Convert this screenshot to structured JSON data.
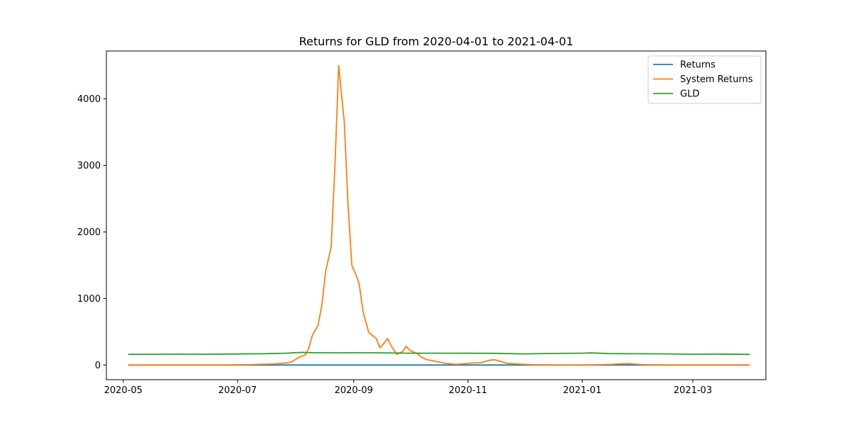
{
  "chart_data": {
    "type": "line",
    "title": "Returns for GLD from 2020-04-01 to 2021-04-01",
    "xlabel": "",
    "ylabel": "",
    "xlim": [
      "2020-04-22",
      "2021-04-09"
    ],
    "ylim": [
      -220,
      4720
    ],
    "x_ticks": [
      "2020-05",
      "2020-07",
      "2020-09",
      "2020-11",
      "2021-01",
      "2021-03"
    ],
    "y_ticks": [
      0,
      1000,
      2000,
      3000,
      4000
    ],
    "grid": false,
    "legend_position": "top-right",
    "series": [
      {
        "name": "Returns",
        "color": "#1f77b4",
        "points": [
          [
            "2020-05-04",
            0
          ],
          [
            "2020-06-01",
            0
          ],
          [
            "2020-07-01",
            0
          ],
          [
            "2020-08-01",
            0
          ],
          [
            "2020-09-01",
            0
          ],
          [
            "2020-10-01",
            0
          ],
          [
            "2020-11-01",
            0
          ],
          [
            "2020-12-01",
            0
          ],
          [
            "2021-01-01",
            0
          ],
          [
            "2021-02-01",
            0
          ],
          [
            "2021-03-01",
            0
          ],
          [
            "2021-03-31",
            0
          ]
        ]
      },
      {
        "name": "System Returns",
        "color": "#ff7f0e",
        "points": [
          [
            "2020-05-04",
            0
          ],
          [
            "2020-06-01",
            0
          ],
          [
            "2020-06-22",
            0
          ],
          [
            "2020-07-06",
            5
          ],
          [
            "2020-07-20",
            15
          ],
          [
            "2020-07-27",
            30
          ],
          [
            "2020-07-30",
            50
          ],
          [
            "2020-08-03",
            120
          ],
          [
            "2020-08-06",
            150
          ],
          [
            "2020-08-08",
            250
          ],
          [
            "2020-08-10",
            450
          ],
          [
            "2020-08-13",
            600
          ],
          [
            "2020-08-15",
            900
          ],
          [
            "2020-08-17",
            1400
          ],
          [
            "2020-08-20",
            1780
          ],
          [
            "2020-08-22",
            3000
          ],
          [
            "2020-08-24",
            4500
          ],
          [
            "2020-08-27",
            3650
          ],
          [
            "2020-08-29",
            2400
          ],
          [
            "2020-08-31",
            1500
          ],
          [
            "2020-09-03",
            1300
          ],
          [
            "2020-09-04",
            1200
          ],
          [
            "2020-09-05",
            1000
          ],
          [
            "2020-09-06",
            800
          ],
          [
            "2020-09-08",
            600
          ],
          [
            "2020-09-09",
            490
          ],
          [
            "2020-09-13",
            400
          ],
          [
            "2020-09-15",
            260
          ],
          [
            "2020-09-17",
            320
          ],
          [
            "2020-09-19",
            400
          ],
          [
            "2020-09-21",
            290
          ],
          [
            "2020-09-24",
            160
          ],
          [
            "2020-09-27",
            200
          ],
          [
            "2020-09-29",
            280
          ],
          [
            "2020-10-01",
            220
          ],
          [
            "2020-10-05",
            170
          ],
          [
            "2020-10-07",
            120
          ],
          [
            "2020-10-10",
            80
          ],
          [
            "2020-10-14",
            60
          ],
          [
            "2020-10-19",
            30
          ],
          [
            "2020-10-25",
            10
          ],
          [
            "2020-10-31",
            20
          ],
          [
            "2020-11-03",
            30
          ],
          [
            "2020-11-08",
            35
          ],
          [
            "2020-11-12",
            70
          ],
          [
            "2020-11-15",
            80
          ],
          [
            "2020-11-19",
            50
          ],
          [
            "2020-11-22",
            25
          ],
          [
            "2020-11-27",
            15
          ],
          [
            "2020-12-05",
            5
          ],
          [
            "2020-12-20",
            0
          ],
          [
            "2021-01-05",
            2
          ],
          [
            "2021-01-17",
            10
          ],
          [
            "2021-01-22",
            20
          ],
          [
            "2021-01-26",
            20
          ],
          [
            "2021-02-03",
            5
          ],
          [
            "2021-02-20",
            0
          ],
          [
            "2021-03-31",
            0
          ]
        ]
      },
      {
        "name": "GLD",
        "color": "#2ca02c",
        "points": [
          [
            "2020-05-04",
            160
          ],
          [
            "2020-05-18",
            162
          ],
          [
            "2020-06-01",
            163
          ],
          [
            "2020-06-15",
            162
          ],
          [
            "2020-07-01",
            167
          ],
          [
            "2020-07-15",
            170
          ],
          [
            "2020-07-27",
            178
          ],
          [
            "2020-08-04",
            190
          ],
          [
            "2020-08-11",
            185
          ],
          [
            "2020-08-18",
            185
          ],
          [
            "2020-08-25",
            183
          ],
          [
            "2020-09-01",
            185
          ],
          [
            "2020-09-15",
            184
          ],
          [
            "2020-10-01",
            178
          ],
          [
            "2020-10-15",
            178
          ],
          [
            "2020-11-01",
            177
          ],
          [
            "2020-11-15",
            176
          ],
          [
            "2020-12-01",
            168
          ],
          [
            "2020-12-15",
            174
          ],
          [
            "2021-01-01",
            178
          ],
          [
            "2021-01-06",
            182
          ],
          [
            "2021-01-15",
            172
          ],
          [
            "2021-02-01",
            170
          ],
          [
            "2021-02-15",
            168
          ],
          [
            "2021-03-01",
            162
          ],
          [
            "2021-03-15",
            164
          ],
          [
            "2021-03-31",
            160
          ]
        ]
      }
    ]
  }
}
